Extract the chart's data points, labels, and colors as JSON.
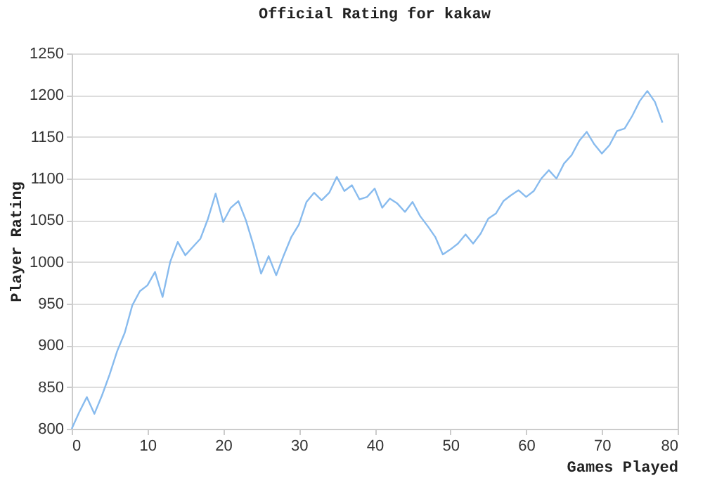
{
  "chart_data": {
    "type": "line",
    "title": "Official Rating for kakaw",
    "xlabel": "Games Played",
    "ylabel": "Player Rating",
    "x": [
      0,
      1,
      2,
      3,
      4,
      5,
      6,
      7,
      8,
      9,
      10,
      11,
      12,
      13,
      14,
      15,
      16,
      17,
      18,
      19,
      20,
      21,
      22,
      23,
      24,
      25,
      26,
      27,
      28,
      29,
      30,
      31,
      32,
      33,
      34,
      35,
      36,
      37,
      38,
      39,
      40,
      41,
      42,
      43,
      44,
      45,
      46,
      47,
      48,
      49,
      50,
      51,
      52,
      53,
      54,
      55,
      56,
      57,
      58,
      59,
      60,
      61,
      62,
      63,
      64,
      65,
      66,
      67,
      68,
      69,
      70,
      71,
      72,
      73,
      74,
      75,
      76,
      77,
      78
    ],
    "series": [
      {
        "color": "#88bbee",
        "values": [
          800,
          820,
          838,
          818,
          840,
          865,
          893,
          915,
          948,
          965,
          972,
          988,
          958,
          1000,
          1024,
          1008,
          1018,
          1028,
          1052,
          1082,
          1048,
          1065,
          1073,
          1050,
          1020,
          986,
          1007,
          984,
          1008,
          1030,
          1045,
          1072,
          1083,
          1074,
          1083,
          1102,
          1085,
          1092,
          1075,
          1078,
          1088,
          1065,
          1076,
          1070,
          1060,
          1072,
          1055,
          1043,
          1030,
          1009,
          1015,
          1022,
          1033,
          1022,
          1034,
          1052,
          1058,
          1073,
          1080,
          1086,
          1078,
          1085,
          1100,
          1110,
          1100,
          1118,
          1128,
          1145,
          1156,
          1141,
          1130,
          1140,
          1157,
          1160,
          1175,
          1193,
          1205,
          1192,
          1167
        ]
      }
    ],
    "xlim": [
      0,
      80
    ],
    "xticks": [
      0,
      10,
      20,
      30,
      40,
      50,
      60,
      70,
      80
    ],
    "ylim": [
      800,
      1250
    ],
    "yticks": [
      800,
      850,
      900,
      950,
      1000,
      1050,
      1100,
      1150,
      1200,
      1250
    ],
    "grid": "y",
    "marker": "none",
    "line_style": "solid",
    "legend": false
  }
}
